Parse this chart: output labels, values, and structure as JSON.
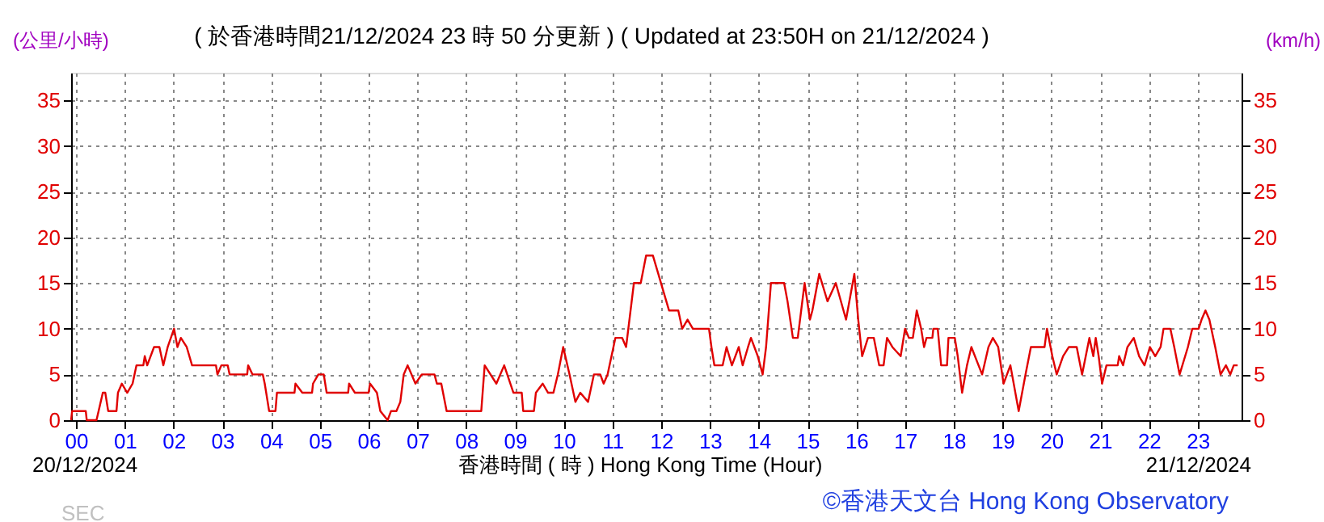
{
  "chart_data": {
    "type": "line",
    "title": "( 於香港時間21/12/2024 23 時 50 分更新 ) ( Updated at 23:50H on 21/12/2024 )",
    "ylabel": "(公里/小時)",
    "y2label": "(km/h)",
    "xlabel": "香港時間 ( 時 ) Hong Kong Time (Hour)",
    "annotations": [
      "20/12/2024",
      "21/12/2024",
      "©香港天文台 Hong Kong Observatory",
      "SEC"
    ],
    "xlim": [
      -0.1,
      23.9
    ],
    "xticks": [
      {
        "value": 0,
        "label": "00"
      },
      {
        "value": 1,
        "label": "01"
      },
      {
        "value": 2,
        "label": "02"
      },
      {
        "value": 3,
        "label": "03"
      },
      {
        "value": 4,
        "label": "04"
      },
      {
        "value": 5,
        "label": "05"
      },
      {
        "value": 6,
        "label": "06"
      },
      {
        "value": 7,
        "label": "07"
      },
      {
        "value": 8,
        "label": "08"
      },
      {
        "value": 9,
        "label": "09"
      },
      10,
      11,
      12,
      13,
      14,
      15,
      16,
      17,
      18,
      19,
      20,
      21,
      22,
      23
    ],
    "ylim": [
      0,
      38
    ],
    "yticks": [
      0,
      5,
      10,
      15,
      20,
      25,
      30,
      35
    ],
    "y2lim": [
      0,
      38
    ],
    "y2ticks": [
      0,
      5,
      10,
      15,
      20,
      25,
      30,
      35
    ],
    "grid": true,
    "marker": "none",
    "line_style": "solid",
    "series": [
      {
        "color": "#e00000",
        "x": [
          -0.1,
          -0.08,
          0.2,
          0.22,
          0.42,
          0.55,
          0.6,
          0.66,
          0.83,
          0.86,
          0.94,
          1.05,
          1.16,
          1.24,
          1.38,
          1.41,
          1.46,
          1.6,
          1.71,
          1.79,
          1.88,
          2.01,
          2.08,
          2.15,
          2.27,
          2.38,
          2.87,
          2.9,
          2.98,
          3.11,
          3.15,
          3.51,
          3.53,
          3.62,
          3.83,
          3.87,
          3.96,
          4.09,
          4.12,
          4.48,
          4.5,
          4.64,
          4.84,
          4.86,
          4.97,
          5.08,
          5.14,
          5.58,
          5.6,
          5.72,
          6.0,
          6.03,
          6.17,
          6.24,
          6.39,
          6.46,
          6.57,
          6.65,
          6.72,
          6.8,
          6.96,
          7.09,
          7.35,
          7.4,
          7.49,
          7.6,
          7.65,
          8.31,
          8.38,
          8.62,
          8.78,
          8.97,
          9.14,
          9.17,
          9.39,
          9.43,
          9.57,
          9.68,
          9.79,
          9.88,
          9.99,
          10.12,
          10.24,
          10.34,
          10.5,
          10.62,
          10.75,
          10.82,
          10.9,
          11.06,
          11.2,
          11.28,
          11.44,
          11.58,
          11.69,
          11.83,
          11.94,
          12.05,
          12.16,
          12.35,
          12.43,
          12.54,
          12.65,
          12.98,
          13.03,
          13.09,
          13.26,
          13.34,
          13.45,
          13.59,
          13.67,
          13.78,
          13.84,
          13.98,
          14.08,
          14.15,
          14.25,
          14.52,
          14.59,
          14.7,
          14.8,
          14.94,
          15.05,
          15.1,
          15.24,
          15.41,
          15.58,
          15.79,
          15.96,
          16.04,
          16.12,
          16.24,
          16.36,
          16.47,
          16.56,
          16.63,
          16.74,
          16.91,
          17.0,
          17.08,
          17.16,
          17.24,
          17.33,
          17.39,
          17.44,
          17.56,
          17.58,
          17.67,
          17.74,
          17.86,
          17.89,
          18.02,
          18.08,
          18.17,
          18.27,
          18.36,
          18.58,
          18.71,
          18.8,
          18.91,
          19.02,
          19.16,
          19.33,
          19.47,
          19.58,
          19.86,
          19.91,
          20.02,
          20.11,
          20.24,
          20.36,
          20.52,
          20.63,
          20.78,
          20.86,
          20.91,
          20.97,
          21.04,
          21.13,
          21.36,
          21.39,
          21.47,
          21.56,
          21.69,
          21.8,
          21.91,
          22.02,
          22.13,
          22.24,
          22.3,
          22.44,
          22.52,
          22.63,
          22.8,
          22.89,
          23.02,
          23.08,
          23.16,
          23.24,
          23.36,
          23.47,
          23.58,
          23.67,
          23.74,
          23.82
        ],
        "values": [
          0,
          1,
          1,
          0,
          0,
          3,
          3,
          1,
          1,
          3,
          4,
          3,
          4,
          6,
          6,
          7,
          6,
          8,
          8,
          6,
          8,
          10,
          8,
          9,
          8,
          6,
          6,
          5,
          6,
          6,
          5,
          5,
          6,
          5,
          5,
          4,
          1,
          1,
          3,
          3,
          4,
          3,
          3,
          4,
          5,
          5,
          3,
          3,
          4,
          3,
          3,
          4,
          3,
          1,
          0,
          1,
          1,
          2,
          5,
          6,
          4,
          5,
          5,
          4,
          4,
          1,
          1,
          1,
          6,
          4,
          6,
          3,
          3,
          1,
          1,
          3,
          4,
          3,
          3,
          5,
          8,
          5,
          2,
          3,
          2,
          5,
          5,
          4,
          5,
          9,
          9,
          8,
          15,
          15,
          18,
          18,
          16,
          14,
          12,
          12,
          10,
          11,
          10,
          10,
          8,
          6,
          6,
          8,
          6,
          8,
          6,
          8,
          9,
          7,
          5,
          8,
          15,
          15,
          13,
          9,
          9,
          15,
          11,
          12,
          16,
          13,
          15,
          11,
          16,
          11,
          7,
          9,
          9,
          6,
          6,
          9,
          8,
          7,
          10,
          9,
          9,
          12,
          10,
          8,
          9,
          9,
          10,
          10,
          6,
          6,
          9,
          9,
          7,
          3,
          6,
          8,
          5,
          8,
          9,
          8,
          4,
          6,
          1,
          5,
          8,
          8,
          10,
          7,
          5,
          7,
          8,
          8,
          5,
          9,
          7,
          9,
          7,
          4,
          6,
          6,
          7,
          6,
          8,
          9,
          7,
          6,
          8,
          7,
          8,
          10,
          10,
          8,
          5,
          8,
          10,
          10,
          11,
          12,
          11,
          8,
          5,
          6,
          5,
          6,
          6
        ]
      }
    ]
  }
}
